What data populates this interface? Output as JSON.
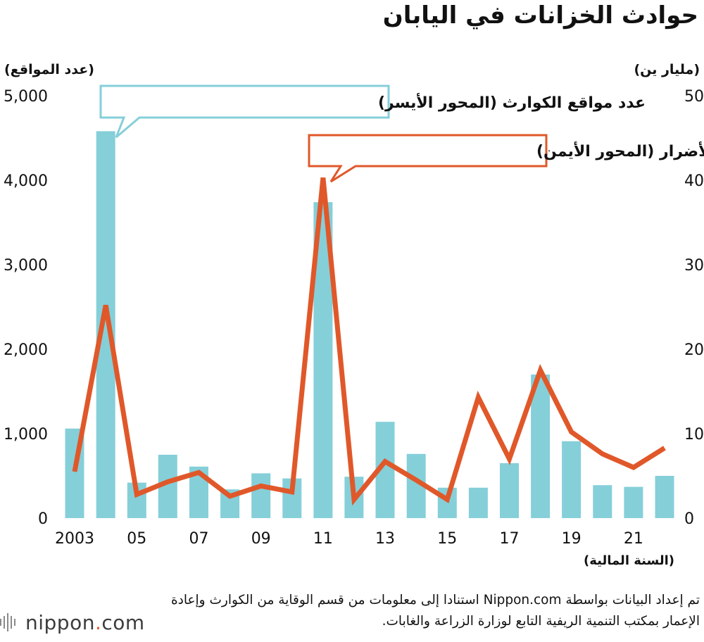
{
  "title": "حوادث الخزانات في اليابان",
  "chart_data": {
    "type": "bar",
    "x": [
      "2003",
      "2004",
      "2005",
      "2006",
      "2007",
      "2008",
      "2009",
      "2010",
      "2011",
      "2012",
      "2013",
      "2014",
      "2015",
      "2016",
      "2017",
      "2018",
      "2019",
      "2020",
      "2021",
      "2022"
    ],
    "x_tick_labels": [
      "2003",
      "05",
      "07",
      "09",
      "11",
      "13",
      "15",
      "17",
      "19",
      "21"
    ],
    "xlabel": "(السنة المالية)",
    "y_left": {
      "unit": "(عدد المواقع)",
      "ylim": [
        0,
        5000
      ],
      "ticks": [
        "0",
        "1,000",
        "2,000",
        "3,000",
        "4,000",
        "5,000"
      ]
    },
    "y_right": {
      "unit": "(مليار ين)",
      "ylim": [
        0,
        50
      ],
      "ticks": [
        "0",
        "10",
        "20",
        "30",
        "40",
        "50"
      ]
    },
    "series": [
      {
        "name": "عدد مواقع الكوارث (المحور الأيسر)",
        "type": "bar",
        "axis": "left",
        "color": "#85cfd9",
        "values": [
          1060,
          4580,
          420,
          750,
          610,
          340,
          530,
          470,
          3740,
          490,
          1140,
          760,
          360,
          360,
          650,
          1700,
          910,
          390,
          370,
          500
        ]
      },
      {
        "name": "تكلفة الأضرار (المحور الأيمن)",
        "type": "line",
        "axis": "right",
        "color": "#e0582a",
        "values": [
          5.5,
          25.2,
          2.8,
          4.3,
          5.4,
          2.6,
          3.8,
          3.1,
          40.3,
          2.2,
          6.7,
          4.5,
          2.2,
          14.3,
          7.0,
          17.5,
          10.2,
          7.6,
          6.0,
          8.3
        ]
      }
    ],
    "legend": "callouts",
    "grid": false
  },
  "source": "تم إعداد البيانات بواسطة Nippon.com استنادا إلى معلومات من قسم الوقاية من الكوارث وإعادة الإعمار بمكتب التنمية الريفية التابع لوزارة الزراعة والغابات.",
  "logo": {
    "word": "nippon",
    "dot": ".",
    "tld": "com"
  }
}
